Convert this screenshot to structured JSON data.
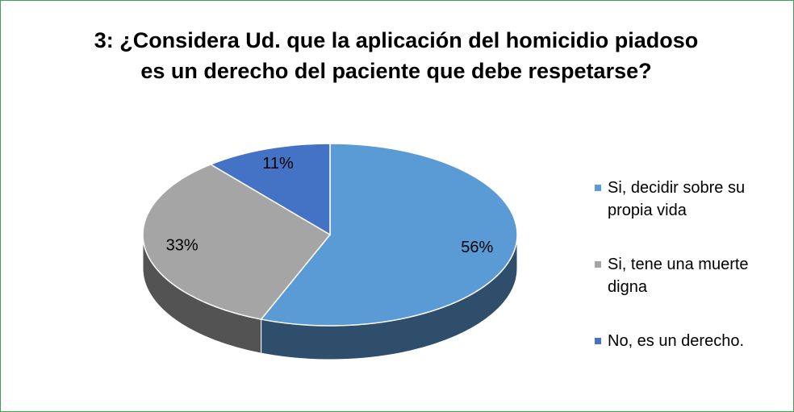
{
  "chart_data": {
    "type": "pie",
    "title": "3: ¿Considera Ud. que la aplicación del homicidio piadoso es un derecho del paciente que debe respetarse?",
    "categories": [
      "Si, decidir sobre su propia vida",
      "Si, tene una muerte digna",
      "No, es un derecho."
    ],
    "values": [
      56,
      33,
      11
    ],
    "value_labels": [
      "56%",
      "33%",
      "11%"
    ],
    "colors": [
      "#5b9bd5",
      "#a5a5a5",
      "#4472c4"
    ],
    "legend": "right"
  }
}
